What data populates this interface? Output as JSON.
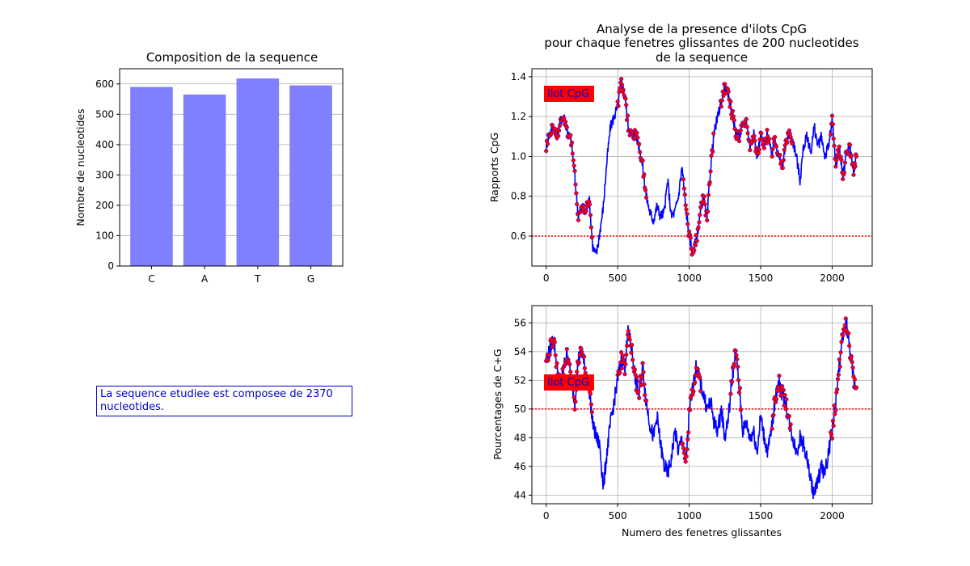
{
  "chart_data": [
    {
      "id": "composition",
      "type": "bar",
      "title": "Composition de la sequence",
      "xlabel": "",
      "ylabel": "Nombre de nucleotides",
      "categories": [
        "C",
        "A",
        "T",
        "G"
      ],
      "values": [
        590,
        565,
        618,
        595
      ],
      "ylim": [
        0,
        650
      ],
      "yticks": [
        0,
        100,
        200,
        300,
        400,
        500,
        600
      ],
      "bar_color": "#8080ff",
      "grid": "y"
    },
    {
      "id": "cpg_ratio",
      "type": "line",
      "title_lines": [
        "Analyse de la presence d'ilots CpG",
        "pour chaque fenetres glissantes de 200 nucleotides",
        "de la sequence"
      ],
      "xlabel": "",
      "ylabel": "Rapports CpG",
      "xlim": [
        -100,
        2280
      ],
      "ylim": [
        0.45,
        1.44
      ],
      "xticks": [
        0,
        500,
        1000,
        1500,
        2000
      ],
      "yticks": [
        0.6,
        0.8,
        1.0,
        1.2,
        1.4
      ],
      "ytick_labels": [
        "0.6",
        "0.8",
        "1.0",
        "1.2",
        "1.4"
      ],
      "threshold": 0.6,
      "threshold_color": "#ff0000",
      "line_color": "#0000ff",
      "marker_color": "#ff0000",
      "legend_label": "Ilot CpG",
      "legend_position": "top-left",
      "grid": "both",
      "series": [
        {
          "x": [
            0,
            25,
            50,
            75,
            100,
            125,
            150,
            175,
            200,
            225,
            250,
            275,
            300,
            325,
            350,
            375,
            400,
            425,
            450,
            475,
            500,
            525,
            550,
            575,
            600,
            625,
            650,
            675,
            700,
            725,
            750,
            775,
            800,
            825,
            850,
            875,
            900,
            925,
            950,
            975,
            1000,
            1025,
            1050,
            1075,
            1100,
            1125,
            1150,
            1175,
            1200,
            1225,
            1250,
            1275,
            1300,
            1325,
            1350,
            1375,
            1400,
            1425,
            1450,
            1475,
            1500,
            1525,
            1550,
            1575,
            1600,
            1625,
            1650,
            1675,
            1700,
            1725,
            1750,
            1775,
            1800,
            1825,
            1850,
            1875,
            1900,
            1925,
            1950,
            1975,
            2000,
            2025,
            2050,
            2075,
            2100,
            2125,
            2150,
            2170
          ],
          "y": [
            1.05,
            1.12,
            1.15,
            1.1,
            1.18,
            1.2,
            1.12,
            1.08,
            0.9,
            0.7,
            0.75,
            0.72,
            0.8,
            0.55,
            0.5,
            0.62,
            0.75,
            0.98,
            1.15,
            1.2,
            1.25,
            1.38,
            1.3,
            1.15,
            1.1,
            1.12,
            1.05,
            0.95,
            0.8,
            0.72,
            0.68,
            0.75,
            0.7,
            0.72,
            0.88,
            0.7,
            0.72,
            0.8,
            0.95,
            0.75,
            0.6,
            0.52,
            0.58,
            0.7,
            0.8,
            0.68,
            0.95,
            1.12,
            1.2,
            1.28,
            1.35,
            1.3,
            1.22,
            1.12,
            1.1,
            1.15,
            1.18,
            1.05,
            1.12,
            1.0,
            1.1,
            1.05,
            1.12,
            1.0,
            1.1,
            1.0,
            0.95,
            1.05,
            1.12,
            1.08,
            1.0,
            0.88,
            1.05,
            1.1,
            1.02,
            1.15,
            1.05,
            1.1,
            1.0,
            1.05,
            1.18,
            0.95,
            1.05,
            0.9,
            1.02,
            1.05,
            0.92,
            1.0
          ],
          "islands": [
            [
              0,
              320
            ],
            [
              500,
              700
            ],
            [
              960,
              1170
            ],
            [
              1220,
              1560
            ],
            [
              1580,
              1720
            ],
            [
              1990,
              2170
            ]
          ]
        }
      ]
    },
    {
      "id": "cg_percent",
      "type": "line",
      "title": "",
      "xlabel": "Numero des fenetres glissantes",
      "ylabel": "Pourcentages de C+G",
      "xlim": [
        -100,
        2280
      ],
      "ylim": [
        43.4,
        57.2
      ],
      "xticks": [
        0,
        500,
        1000,
        1500,
        2000
      ],
      "yticks": [
        44,
        46,
        48,
        50,
        52,
        54,
        56
      ],
      "threshold": 50,
      "threshold_color": "#ff0000",
      "line_color": "#0000ff",
      "marker_color": "#ff0000",
      "legend_label": "Ilot CpG",
      "legend_position": "center-left",
      "grid": "both",
      "series": [
        {
          "x": [
            0,
            25,
            50,
            75,
            100,
            125,
            150,
            175,
            200,
            225,
            250,
            275,
            300,
            325,
            350,
            375,
            400,
            425,
            450,
            475,
            500,
            525,
            550,
            575,
            600,
            625,
            650,
            675,
            700,
            725,
            750,
            775,
            800,
            825,
            850,
            875,
            900,
            925,
            950,
            975,
            1000,
            1025,
            1050,
            1075,
            1100,
            1125,
            1150,
            1175,
            1200,
            1225,
            1250,
            1275,
            1300,
            1325,
            1350,
            1375,
            1400,
            1425,
            1450,
            1475,
            1500,
            1525,
            1550,
            1575,
            1600,
            1625,
            1650,
            1675,
            1700,
            1725,
            1750,
            1775,
            1800,
            1825,
            1850,
            1875,
            1900,
            1925,
            1950,
            1975,
            2000,
            2025,
            2050,
            2075,
            2100,
            2125,
            2150,
            2170
          ],
          "y": [
            53.5,
            54.0,
            55.0,
            53.0,
            51.5,
            53.0,
            54.0,
            52.0,
            50.5,
            53.5,
            54.0,
            52.5,
            51.5,
            49.0,
            48.0,
            47.5,
            44.5,
            47.0,
            49.0,
            50.5,
            52.0,
            53.5,
            53.0,
            55.5,
            54.0,
            52.0,
            51.0,
            53.0,
            50.5,
            49.0,
            48.0,
            49.5,
            47.5,
            46.0,
            45.5,
            46.5,
            48.5,
            47.0,
            48.0,
            46.0,
            49.5,
            51.5,
            53.0,
            52.0,
            51.0,
            50.0,
            50.5,
            49.0,
            48.5,
            50.0,
            48.0,
            49.5,
            52.0,
            54.0,
            51.5,
            48.5,
            49.0,
            48.0,
            48.5,
            47.0,
            49.5,
            48.0,
            47.0,
            48.5,
            50.5,
            52.0,
            51.0,
            50.5,
            49.0,
            48.0,
            47.0,
            48.0,
            47.5,
            46.5,
            45.0,
            44.0,
            45.0,
            46.0,
            45.5,
            47.0,
            48.5,
            50.5,
            53.0,
            55.0,
            56.0,
            54.0,
            52.0,
            51.5
          ],
          "islands": [
            [
              0,
              320
            ],
            [
              500,
              700
            ],
            [
              950,
              1080
            ],
            [
              1290,
              1360
            ],
            [
              1580,
              1710
            ],
            [
              1990,
              2170
            ]
          ]
        }
      ]
    }
  ],
  "info_text": "La sequence etudiee est composee de 2370 nucleotides."
}
